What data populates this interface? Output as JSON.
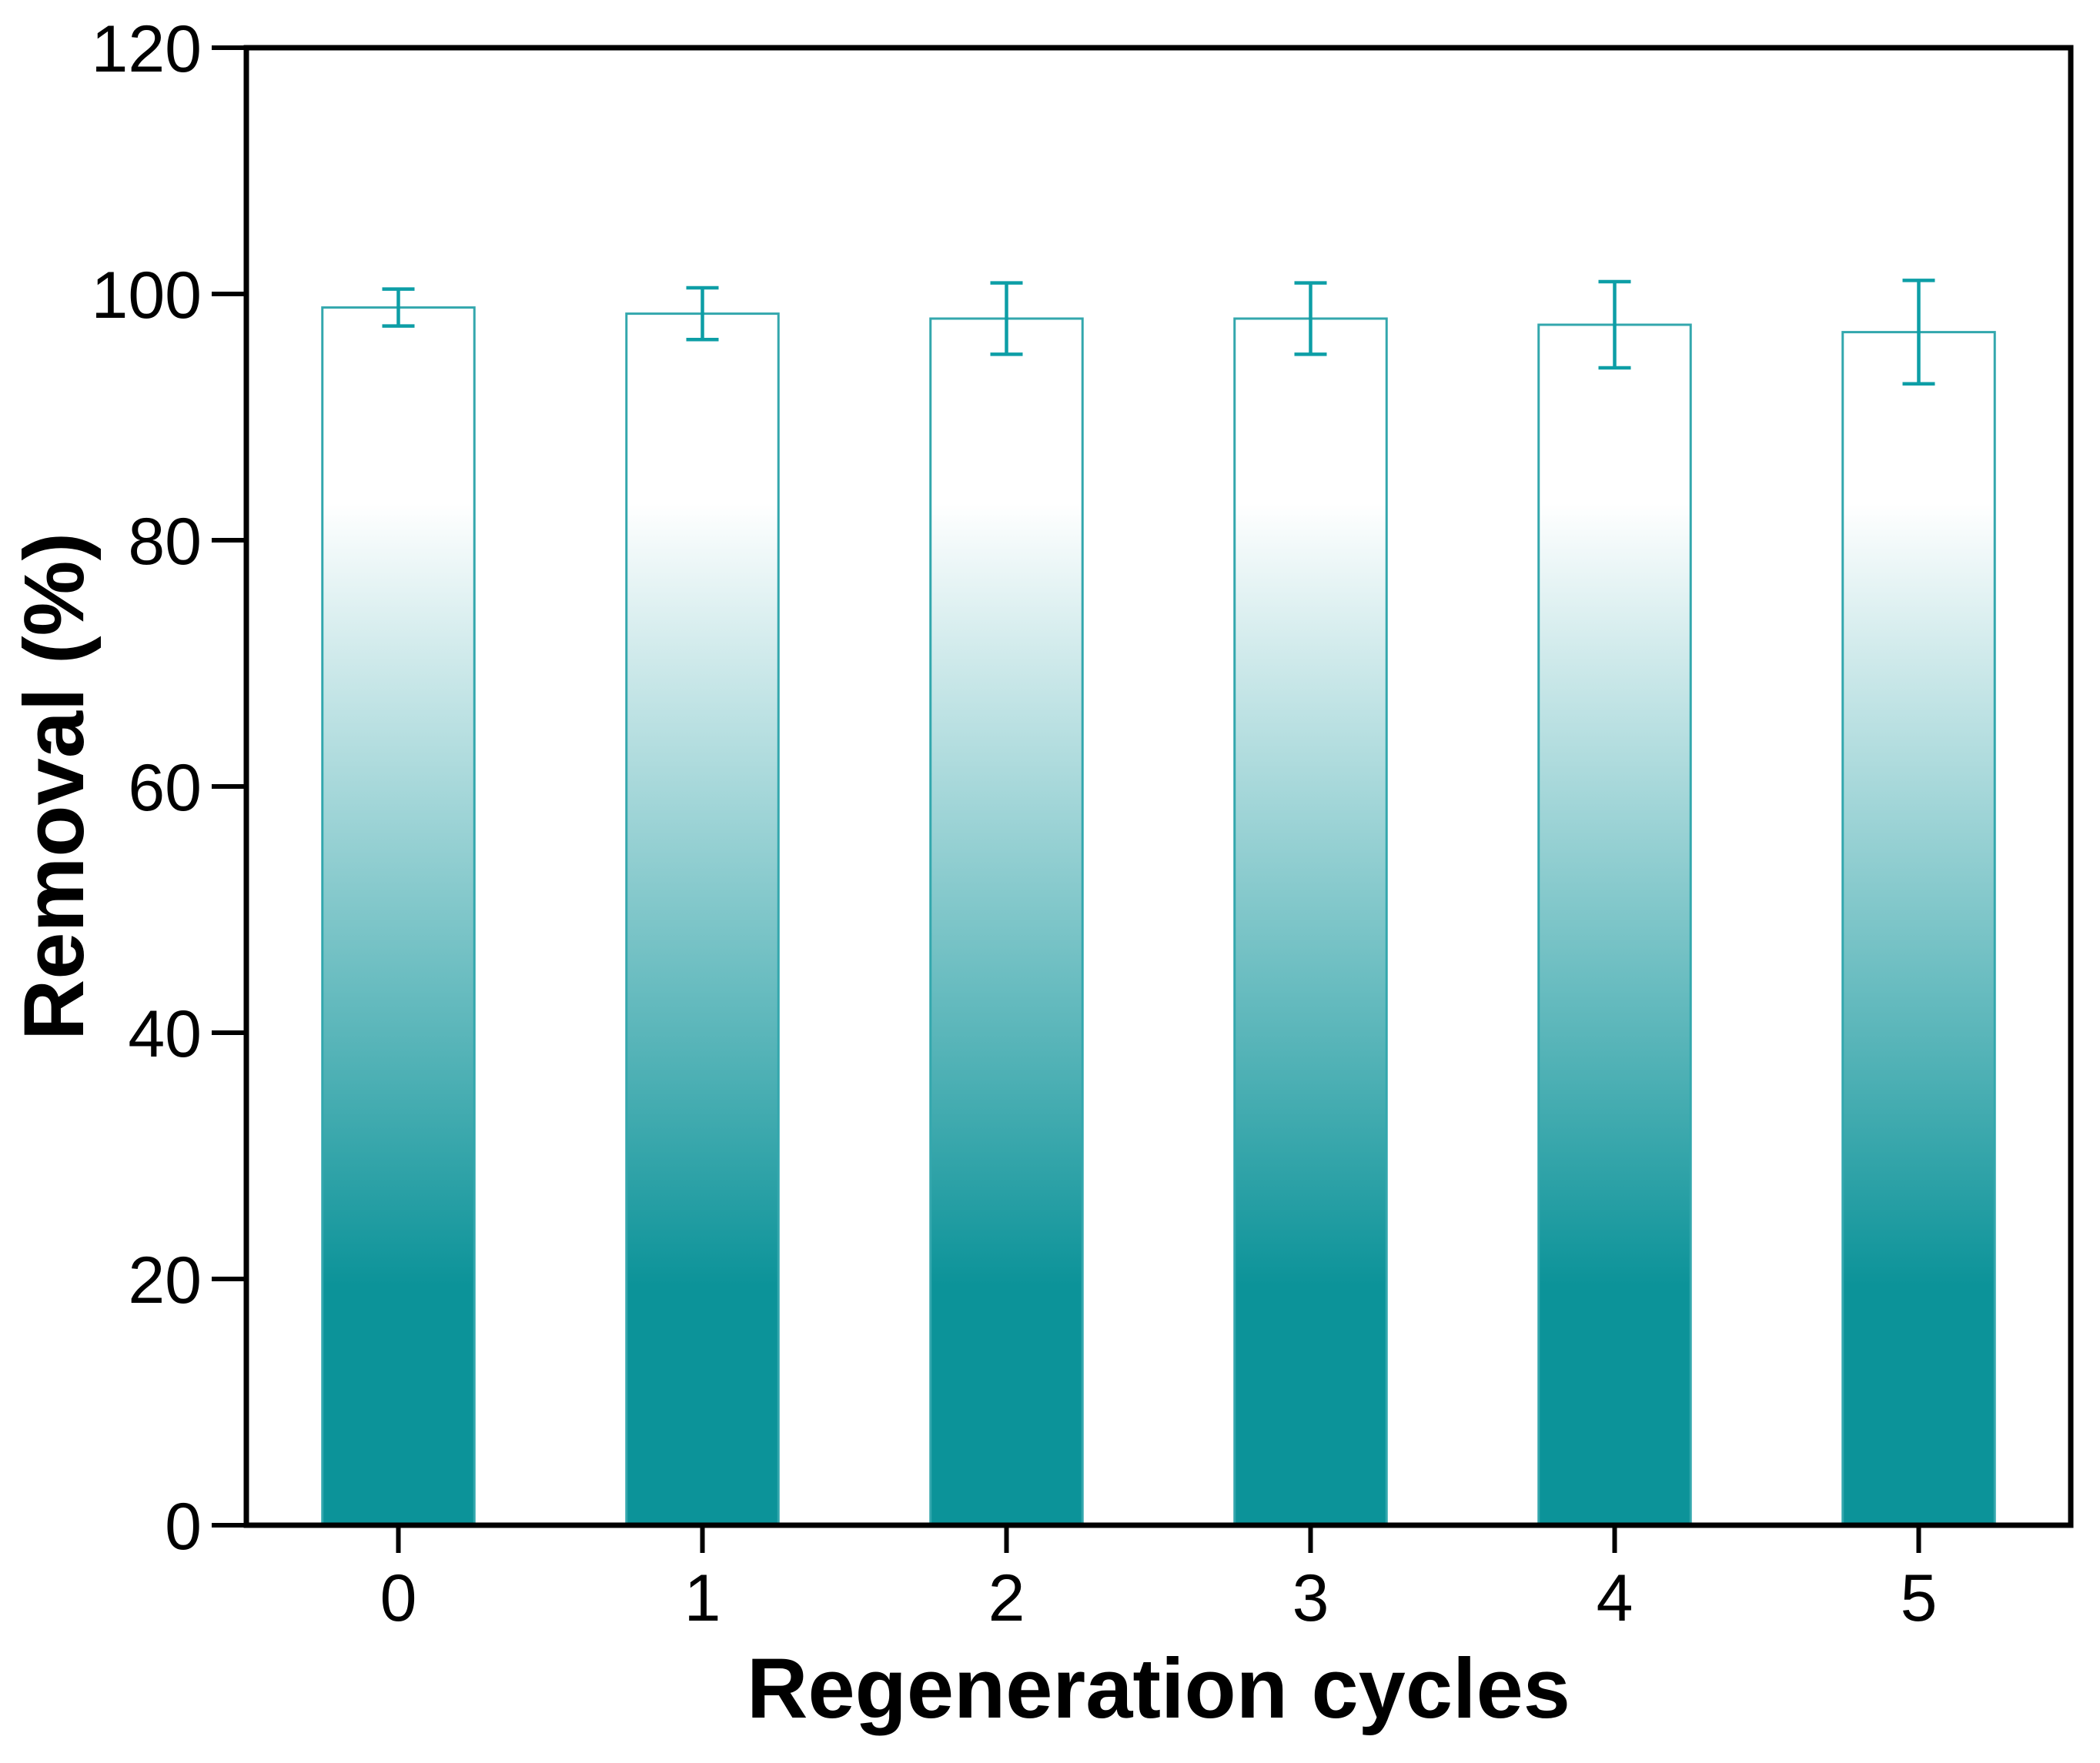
{
  "chart_data": {
    "type": "bar",
    "title": "",
    "xlabel": "Regeneration cycles",
    "ylabel": "Removal (%)",
    "categories": [
      "0",
      "1",
      "2",
      "3",
      "4",
      "5"
    ],
    "values": [
      98.9,
      98.4,
      98.0,
      98.0,
      97.5,
      96.9
    ],
    "errors": [
      1.5,
      2.1,
      2.9,
      2.9,
      3.5,
      4.2
    ],
    "ylim": [
      0,
      120
    ],
    "yticks": [
      0,
      20,
      40,
      60,
      80,
      100,
      120
    ],
    "grid": false,
    "legend": null,
    "bar_width_fraction": 0.5,
    "style": {
      "bar_color_bottom": "#0C9399",
      "bar_color_top": "#FFFFFF",
      "bar_gradient_solid_until_value": 19.5,
      "bar_gradient_white_at_value": 83,
      "bar_outline_color": "#33A7AD",
      "error_bar_color": "#0D9EA6",
      "axis_color": "#000000",
      "text_color": "#000000",
      "background": "#FFFFFF"
    }
  }
}
